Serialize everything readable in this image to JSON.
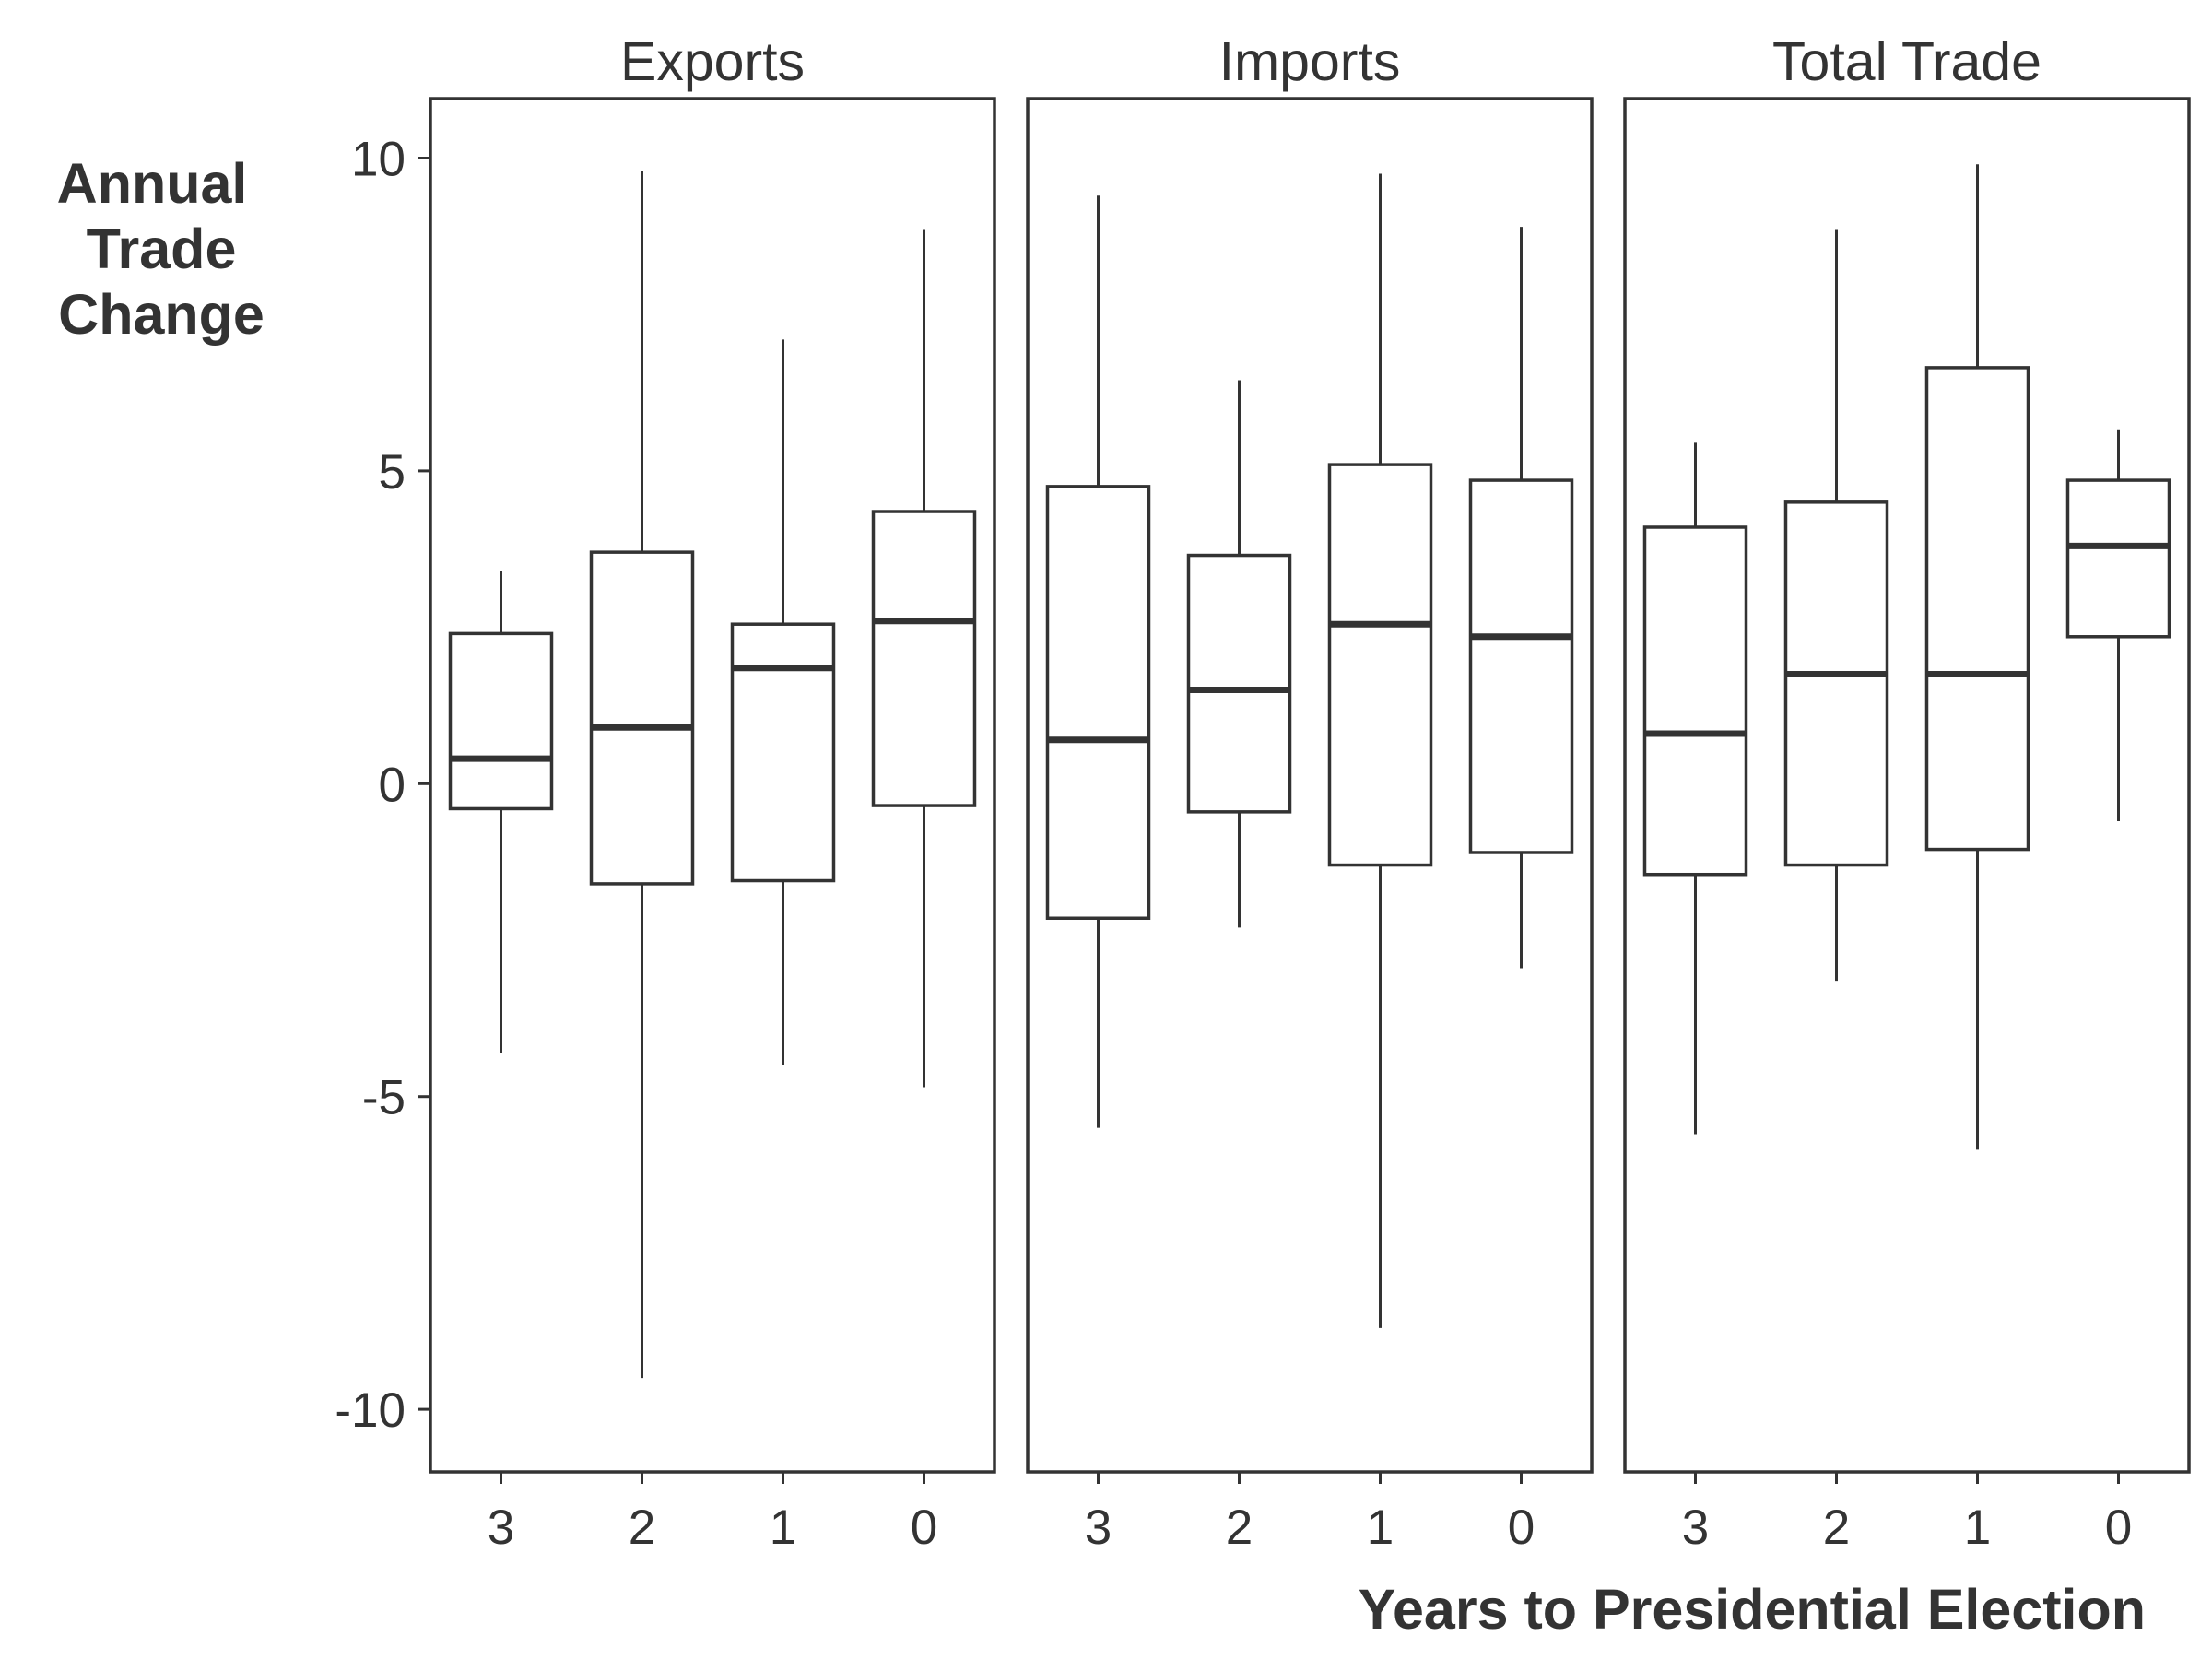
{
  "chart_data": {
    "type": "boxplot",
    "ylabel": [
      "Annual",
      "Trade",
      "Change"
    ],
    "xlabel": "Years to Presidential Election",
    "ylim": [
      -11,
      10.95
    ],
    "y_ticks": [
      "10",
      "5",
      "0",
      "-5",
      "-10"
    ],
    "y_tick_values": [
      10,
      5,
      0,
      -5,
      -10
    ],
    "categories": [
      "3",
      "2",
      "1",
      "0"
    ],
    "grid": false,
    "panels": [
      {
        "title": "Exports",
        "boxes": [
          {
            "category": "3",
            "min": -4.3,
            "q1": -0.4,
            "median": 0.4,
            "q3": 2.4,
            "max": 3.4
          },
          {
            "category": "2",
            "min": -9.5,
            "q1": -1.6,
            "median": 0.9,
            "q3": 3.7,
            "max": 9.8
          },
          {
            "category": "1",
            "min": -4.5,
            "q1": -1.55,
            "median": 1.85,
            "q3": 2.55,
            "max": 7.1
          },
          {
            "category": "0",
            "min": -4.85,
            "q1": -0.35,
            "median": 2.6,
            "q3": 4.35,
            "max": 8.85
          }
        ]
      },
      {
        "title": "Imports",
        "boxes": [
          {
            "category": "3",
            "min": -5.5,
            "q1": -2.15,
            "median": 0.7,
            "q3": 4.75,
            "max": 9.4
          },
          {
            "category": "2",
            "min": -2.3,
            "q1": -0.45,
            "median": 1.5,
            "q3": 3.65,
            "max": 6.45
          },
          {
            "category": "1",
            "min": -8.7,
            "q1": -1.3,
            "median": 2.55,
            "q3": 5.1,
            "max": 9.75
          },
          {
            "category": "0",
            "min": -2.95,
            "q1": -1.1,
            "median": 2.35,
            "q3": 4.85,
            "max": 8.9
          }
        ]
      },
      {
        "title": "Total Trade",
        "boxes": [
          {
            "category": "3",
            "min": -5.6,
            "q1": -1.45,
            "median": 0.8,
            "q3": 4.1,
            "max": 5.45
          },
          {
            "category": "2",
            "min": -3.15,
            "q1": -1.3,
            "median": 1.75,
            "q3": 4.5,
            "max": 8.85
          },
          {
            "category": "1",
            "min": -5.85,
            "q1": -1.05,
            "median": 1.75,
            "q3": 6.65,
            "max": 9.9
          },
          {
            "category": "0",
            "min": -0.6,
            "q1": 2.35,
            "median": 3.8,
            "q3": 4.85,
            "max": 5.65
          }
        ]
      }
    ]
  }
}
